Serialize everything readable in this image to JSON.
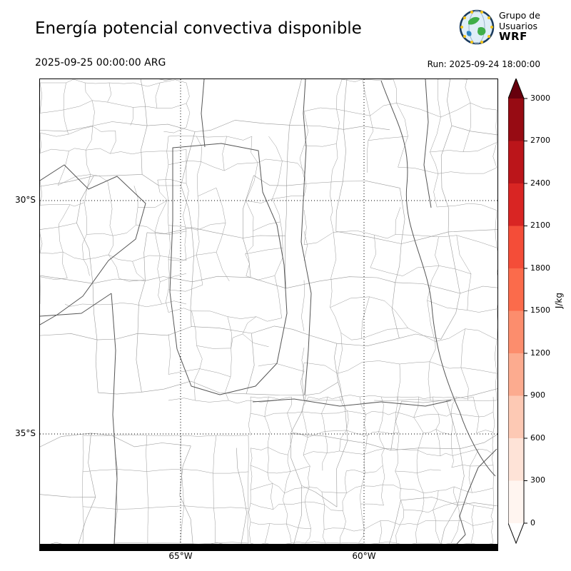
{
  "header": {
    "title": "Energía potencial convectiva disponible",
    "valid_time": "2025-09-25 00:00:00 ARG",
    "run_label": "Run: 2025-09-24 18:00:00",
    "logo": {
      "line1": "Grupo de",
      "line2": "Usuarios",
      "line3": "WRF"
    }
  },
  "map": {
    "lat_ticks": [
      "30°S",
      "35°S"
    ],
    "lon_ticks": [
      "65°W",
      "60°W"
    ]
  },
  "colorbar": {
    "unit": "J/kg",
    "tick_labels": [
      "3000",
      "2700",
      "2400",
      "2100",
      "1800",
      "1500",
      "1200",
      "900",
      "600",
      "300",
      "0"
    ],
    "band_colors_top_to_bottom": [
      "#970b13",
      "#bb151a",
      "#d92523",
      "#f44d38",
      "#fb6b4b",
      "#fc8d6d",
      "#fcab8f",
      "#fdc9b4",
      "#fee3d7",
      "#fff5f0"
    ],
    "over_color": "#67000d",
    "under_color": "#ffffff"
  },
  "chart_data": {
    "type": "map",
    "title": "Energía potencial convectiva disponible",
    "valid_time": "2025-09-25 00:00:00 ARG",
    "run": "Run: 2025-09-24 18:00:00",
    "colorbar": {
      "unit": "J/kg",
      "min": 0,
      "max": 3000,
      "step": 300,
      "colormap": "Reds",
      "extend": "both"
    },
    "lat_gridlines": [
      "30°S",
      "35°S"
    ],
    "lon_gridlines": [
      "65°W",
      "60°W"
    ]
  }
}
